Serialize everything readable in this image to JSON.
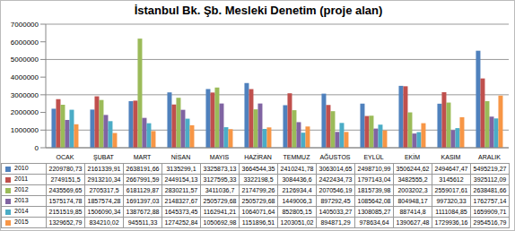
{
  "chart_data": {
    "type": "bar",
    "title": "İstanbul Bk. Şb. Mesleki Denetim (proje alan)",
    "categories": [
      "OCAK",
      "ŞUBAT",
      "MART",
      "NİSAN",
      "MAYIS",
      "HAZİRAN",
      "TEMMUZ",
      "AĞUSTOS",
      "EYLÜL",
      "EKİM",
      "KASIM",
      "ARALIK"
    ],
    "series": [
      {
        "name": "2010",
        "color": "#4f81bd",
        "values": [
          2209780.73,
          2161339.91,
          2638191.66,
          3135299.1,
          3325873.13,
          3664544.35,
          2410241.78,
          3063014.65,
          2498710.99,
          3506244.62,
          2494647.47,
          5495219.27
        ],
        "value_labels": [
          "2209780,73",
          "2161339,91",
          "2638191,66",
          "3135299,1",
          "3325873,13",
          "3664544,35",
          "2410241,78",
          "3063014,65",
          "2498710,99",
          "3506244,62",
          "2494647,47",
          "5495219,27"
        ]
      },
      {
        "name": "2011",
        "color": "#c0504d",
        "values": [
          2749151.5,
          2913210.34,
          2667991.59,
          2449154.13,
          3127595.33,
          3322198.5,
          3084436.6,
          2422434.73,
          1797143.04,
          3482555.2,
          3145612,
          3925112.09
        ],
        "value_labels": [
          "2749151,5",
          "2913210,34",
          "2667991,59",
          "2449154,13",
          "3127595,33",
          "3322198,5",
          "3084436,6",
          "2422434,73",
          "1797143,04",
          "3482555,2",
          "3145612",
          "3925112,09"
        ]
      },
      {
        "name": "2012",
        "color": "#9bbb59",
        "values": [
          2435569.65,
          2705317.5,
          6181129.87,
          2830211.57,
          3411036.7,
          2174799.26,
          2126934.4,
          2070546.19,
          1815739.98,
          2003202.3,
          2559017.61,
          2638481.66
        ],
        "value_labels": [
          "2435569,65",
          "2705317,5",
          "6181129,87",
          "2830211,57",
          "3411036,7",
          "2174799,26",
          "2126934,4",
          "2070546,19",
          "1815739,98",
          "2003202,3",
          "2559017,61",
          "2638481,66"
        ]
      },
      {
        "name": "2013",
        "color": "#8064a2",
        "values": [
          1575174.78,
          1857574.28,
          1691397.03,
          2148327.67,
          2505729.68,
          2505729.68,
          1449006.3,
          897292.45,
          1085642.08,
          804948.17,
          997320.33,
          1762757.14
        ],
        "value_labels": [
          "1575174,78",
          "1857574,28",
          "1691397,03",
          "2148327,67",
          "2505729,68",
          "2505729,68",
          "1449006,3",
          "897292,45",
          "1085642,08",
          "804948,17",
          "997320,33",
          "1762757,14"
        ]
      },
      {
        "name": "2014",
        "color": "#4bacc6",
        "values": [
          2151519.85,
          1506090.34,
          1387672.88,
          1645373.45,
          1162941.21,
          1064071.64,
          852805.15,
          1405033.27,
          1308085.27,
          887414.8,
          1111084.85,
          1659909.71
        ],
        "value_labels": [
          "2151519,85",
          "1506090,34",
          "1387672,88",
          "1645373,45",
          "1162941,21",
          "1064071,64",
          "852805,15",
          "1405033,27",
          "1308085,27",
          "887414,8",
          "1111084,85",
          "1659909,71"
        ]
      },
      {
        "name": "2015",
        "color": "#f79646",
        "values": [
          1329652.79,
          834210.02,
          945511.33,
          1274252.84,
          1050692.98,
          1151896.51,
          1203051.02,
          894871.29,
          978634.64,
          1390627.48,
          1729936.16,
          2954516.79
        ],
        "value_labels": [
          "1329652,79",
          "834210,02",
          "945511,33",
          "1274252,84",
          "1050692,98",
          "1151896,51",
          "1203051,02",
          "894871,29",
          "978634,64",
          "1390627,48",
          "1729936,16",
          "2954516,79"
        ]
      }
    ],
    "ylim": [
      0,
      7000000
    ],
    "yticks": [
      0,
      1000000,
      2000000,
      3000000,
      4000000,
      5000000,
      6000000,
      7000000
    ],
    "grid": true
  }
}
